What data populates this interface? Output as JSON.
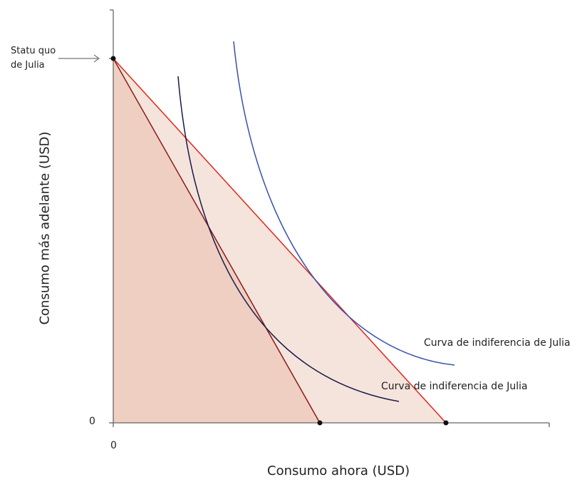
{
  "diagram": {
    "ylabel": "Consumo más adelante (USD)",
    "xlabel": "Consumo ahora (USD)",
    "x_origin": "0",
    "y_origin": "0",
    "status_quo_label_1": "Statu quo",
    "status_quo_label_2": "de Julia",
    "curve_outer_label": "Curva de indiferencia de Julia",
    "curve_inner_label": "Curva de indiferencia de Julia",
    "colors": {
      "axis": "#666666",
      "dark_fill": "#efcfc1",
      "light_fill": "#f5e4dc",
      "steep_line": "#8b1a1a",
      "budget_line": "#e0281c",
      "inner_curve": "#1a1a4a",
      "outer_curve": "#3a4fb0"
    }
  }
}
